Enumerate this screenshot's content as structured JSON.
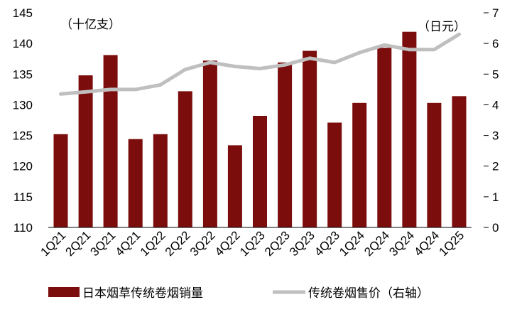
{
  "chart_data": {
    "type": "bar",
    "categories": [
      "1Q21",
      "2Q21",
      "3Q21",
      "4Q21",
      "1Q22",
      "2Q22",
      "3Q22",
      "4Q22",
      "1Q23",
      "2Q23",
      "3Q23",
      "4Q23",
      "1Q24",
      "2Q24",
      "3Q24",
      "4Q24",
      "1Q25"
    ],
    "series": [
      {
        "name": "日本烟草传统卷烟销量",
        "type": "bar",
        "axis": "left",
        "color": "#7b0d0d",
        "values": [
          125.2,
          134.8,
          138.1,
          124.4,
          125.2,
          132.2,
          137.2,
          123.4,
          128.2,
          136.9,
          138.8,
          127.1,
          130.3,
          139.3,
          141.9,
          130.3,
          131.4
        ]
      },
      {
        "name": "传统卷烟售价（右轴）",
        "type": "line",
        "axis": "right",
        "color": "#bfbfbf",
        "values": [
          4.35,
          4.42,
          4.5,
          4.5,
          4.65,
          5.15,
          5.38,
          5.25,
          5.18,
          5.3,
          5.52,
          5.38,
          5.7,
          5.95,
          5.8,
          5.8,
          6.3
        ]
      }
    ],
    "left_axis": {
      "unit_label": "（十亿支）",
      "min": 110,
      "max": 145,
      "ticks": [
        110,
        115,
        120,
        125,
        130,
        135,
        140,
        145
      ]
    },
    "right_axis": {
      "unit_label": "（日元）",
      "min": 0,
      "max": 7,
      "ticks": [
        0,
        1,
        2,
        3,
        4,
        5,
        6,
        7
      ]
    },
    "legend": {
      "placement": "bottom"
    },
    "grid": false
  }
}
